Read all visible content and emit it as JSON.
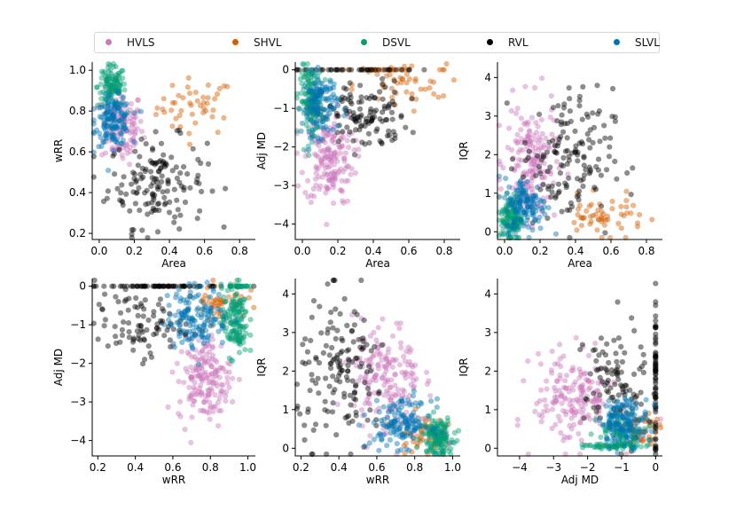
{
  "legend": {
    "items": [
      {
        "label": "HVLS",
        "color": "#CC78BC"
      },
      {
        "label": "SHVL",
        "color": "#D55E00"
      },
      {
        "label": "DSVL",
        "color": "#029E73"
      },
      {
        "label": "RVL",
        "color": "#000000"
      },
      {
        "label": "SLVL",
        "color": "#0173B2"
      }
    ]
  },
  "chart_data": [
    {
      "type": "scatter",
      "xlabel": "Area",
      "ylabel": "wRR",
      "xlim": [
        -0.04,
        0.89
      ],
      "ylim": [
        0.17,
        1.04
      ],
      "xticks": [
        0.0,
        0.2,
        0.4,
        0.6,
        0.8
      ],
      "yticks": [
        0.2,
        0.4,
        0.6,
        0.8,
        1.0
      ],
      "xtick_labels": [
        "0.0",
        "0.2",
        "0.4",
        "0.6",
        "0.8"
      ],
      "ytick_labels": [
        "0.2",
        "0.4",
        "0.6",
        "0.8",
        "1.0"
      ],
      "series": [
        {
          "name": "HVLS",
          "clusters": [
            {
              "cx": 0.13,
              "cy": 0.72,
              "sx": 0.06,
              "sy": 0.09,
              "n": 110
            }
          ]
        },
        {
          "name": "SHVL",
          "clusters": [
            {
              "cx": 0.55,
              "cy": 0.82,
              "sx": 0.11,
              "sy": 0.07,
              "n": 45
            }
          ]
        },
        {
          "name": "DSVL",
          "clusters": [
            {
              "cx": 0.07,
              "cy": 0.92,
              "sx": 0.04,
              "sy": 0.05,
              "n": 110
            }
          ]
        },
        {
          "name": "RVL",
          "clusters": [
            {
              "cx": 0.33,
              "cy": 0.45,
              "sx": 0.14,
              "sy": 0.11,
              "n": 150
            }
          ]
        },
        {
          "name": "SLVL",
          "clusters": [
            {
              "cx": 0.08,
              "cy": 0.75,
              "sx": 0.05,
              "sy": 0.06,
              "n": 140
            }
          ]
        }
      ]
    },
    {
      "type": "scatter",
      "xlabel": "Area",
      "ylabel": "Adj MD",
      "xlim": [
        -0.04,
        0.89
      ],
      "ylim": [
        -4.4,
        0.2
      ],
      "xticks": [
        0.0,
        0.2,
        0.4,
        0.6,
        0.8
      ],
      "yticks": [
        -4,
        -3,
        -2,
        -1,
        0
      ],
      "xtick_labels": [
        "0.0",
        "0.2",
        "0.4",
        "0.6",
        "0.8"
      ],
      "ytick_labels": [
        "−4",
        "−3",
        "−2",
        "−1",
        "0"
      ],
      "series": [
        {
          "name": "HVLS",
          "clusters": [
            {
              "cx": 0.15,
              "cy": -2.3,
              "sx": 0.07,
              "sy": 0.6,
              "n": 170
            }
          ]
        },
        {
          "name": "SHVL",
          "clusters": [
            {
              "cx": 0.55,
              "cy": -0.4,
              "sx": 0.13,
              "sy": 0.3,
              "n": 45
            },
            {
              "cx": 0.45,
              "cy": 0.0,
              "sx": 0.2,
              "sy": 0.0,
              "n": 25
            }
          ]
        },
        {
          "name": "DSVL",
          "clusters": [
            {
              "cx": 0.05,
              "cy": -0.8,
              "sx": 0.03,
              "sy": 0.45,
              "n": 140
            }
          ]
        },
        {
          "name": "RVL",
          "clusters": [
            {
              "cx": 0.35,
              "cy": -1.2,
              "sx": 0.12,
              "sy": 0.45,
              "n": 120
            },
            {
              "cx": 0.3,
              "cy": 0.0,
              "sx": 0.18,
              "sy": 0.0,
              "n": 40
            }
          ]
        },
        {
          "name": "SLVL",
          "clusters": [
            {
              "cx": 0.1,
              "cy": -0.9,
              "sx": 0.05,
              "sy": 0.4,
              "n": 120
            }
          ]
        }
      ]
    },
    {
      "type": "scatter",
      "xlabel": "Area",
      "ylabel": "IQR",
      "xlim": [
        -0.04,
        0.89
      ],
      "ylim": [
        -0.2,
        4.4
      ],
      "xticks": [
        0.0,
        0.2,
        0.4,
        0.6,
        0.8
      ],
      "yticks": [
        0,
        1,
        2,
        3,
        4
      ],
      "xtick_labels": [
        "0.0",
        "0.2",
        "0.4",
        "0.6",
        "0.8"
      ],
      "ytick_labels": [
        "0",
        "1",
        "2",
        "3",
        "4"
      ],
      "series": [
        {
          "name": "HVLS",
          "clusters": [
            {
              "cx": 0.15,
              "cy": 1.8,
              "sx": 0.07,
              "sy": 0.75,
              "n": 170
            }
          ]
        },
        {
          "name": "SHVL",
          "clusters": [
            {
              "cx": 0.55,
              "cy": 0.4,
              "sx": 0.12,
              "sy": 0.25,
              "n": 55
            }
          ]
        },
        {
          "name": "DSVL",
          "clusters": [
            {
              "cx": 0.04,
              "cy": 0.35,
              "sx": 0.03,
              "sy": 0.3,
              "n": 130
            }
          ]
        },
        {
          "name": "RVL",
          "clusters": [
            {
              "cx": 0.35,
              "cy": 1.9,
              "sx": 0.13,
              "sy": 0.9,
              "n": 150
            }
          ]
        },
        {
          "name": "SLVL",
          "clusters": [
            {
              "cx": 0.12,
              "cy": 0.7,
              "sx": 0.06,
              "sy": 0.35,
              "n": 130
            }
          ]
        }
      ]
    },
    {
      "type": "scatter",
      "xlabel": "wRR",
      "ylabel": "Adj MD",
      "xlim": [
        0.17,
        1.04
      ],
      "ylim": [
        -4.4,
        0.2
      ],
      "xticks": [
        0.2,
        0.4,
        0.6,
        0.8,
        1.0
      ],
      "yticks": [
        -4,
        -3,
        -2,
        -1,
        0
      ],
      "xtick_labels": [
        "0.2",
        "0.4",
        "0.6",
        "0.8",
        "1.0"
      ],
      "ytick_labels": [
        "−4",
        "−3",
        "−2",
        "−1",
        "0"
      ],
      "series": [
        {
          "name": "HVLS",
          "clusters": [
            {
              "cx": 0.77,
              "cy": -2.4,
              "sx": 0.07,
              "sy": 0.55,
              "n": 170
            }
          ]
        },
        {
          "name": "SHVL",
          "clusters": [
            {
              "cx": 0.85,
              "cy": -0.35,
              "sx": 0.07,
              "sy": 0.25,
              "n": 45
            }
          ]
        },
        {
          "name": "DSVL",
          "clusters": [
            {
              "cx": 0.93,
              "cy": -0.9,
              "sx": 0.035,
              "sy": 0.45,
              "n": 140
            },
            {
              "cx": 0.95,
              "cy": 0.0,
              "sx": 0.03,
              "sy": 0.0,
              "n": 30
            }
          ]
        },
        {
          "name": "RVL",
          "clusters": [
            {
              "cx": 0.42,
              "cy": -1.0,
              "sx": 0.12,
              "sy": 0.4,
              "n": 90
            },
            {
              "cx": 0.5,
              "cy": 0.0,
              "sx": 0.18,
              "sy": 0.0,
              "n": 70
            }
          ]
        },
        {
          "name": "SLVL",
          "clusters": [
            {
              "cx": 0.73,
              "cy": -0.8,
              "sx": 0.08,
              "sy": 0.4,
              "n": 140
            }
          ]
        }
      ]
    },
    {
      "type": "scatter",
      "xlabel": "wRR",
      "ylabel": "IQR",
      "xlim": [
        0.17,
        1.04
      ],
      "ylim": [
        -0.2,
        4.4
      ],
      "xticks": [
        0.2,
        0.4,
        0.6,
        0.8,
        1.0
      ],
      "yticks": [
        0,
        1,
        2,
        3,
        4
      ],
      "xtick_labels": [
        "0.2",
        "0.4",
        "0.6",
        "0.8",
        "1.0"
      ],
      "ytick_labels": [
        "0",
        "1",
        "2",
        "3",
        "4"
      ],
      "series": [
        {
          "name": "HVLS",
          "clusters": [
            {
              "cx": 0.65,
              "cy": 1.8,
              "sx": 0.09,
              "sy": 0.75,
              "n": 170
            }
          ]
        },
        {
          "name": "SHVL",
          "clusters": [
            {
              "cx": 0.83,
              "cy": 0.4,
              "sx": 0.06,
              "sy": 0.25,
              "n": 45
            }
          ]
        },
        {
          "name": "DSVL",
          "clusters": [
            {
              "cx": 0.92,
              "cy": 0.3,
              "sx": 0.04,
              "sy": 0.25,
              "n": 140
            }
          ]
        },
        {
          "name": "RVL",
          "clusters": [
            {
              "cx": 0.42,
              "cy": 1.9,
              "sx": 0.12,
              "sy": 0.95,
              "n": 150
            }
          ]
        },
        {
          "name": "SLVL",
          "clusters": [
            {
              "cx": 0.73,
              "cy": 0.65,
              "sx": 0.08,
              "sy": 0.3,
              "n": 140
            }
          ]
        }
      ]
    },
    {
      "type": "scatter",
      "xlabel": "Adj MD",
      "ylabel": "IQR",
      "xlim": [
        -4.65,
        0.2
      ],
      "ylim": [
        -0.2,
        4.4
      ],
      "xticks": [
        -4,
        -3,
        -2,
        -1,
        0
      ],
      "yticks": [
        0,
        1,
        2,
        3,
        4
      ],
      "xtick_labels": [
        "−4",
        "−3",
        "−2",
        "−1",
        "0"
      ],
      "ytick_labels": [
        "0",
        "1",
        "2",
        "3",
        "4"
      ],
      "series": [
        {
          "name": "HVLS",
          "clusters": [
            {
              "cx": -2.4,
              "cy": 1.3,
              "sx": 0.6,
              "sy": 0.6,
              "n": 170
            }
          ]
        },
        {
          "name": "SHVL",
          "clusters": [
            {
              "cx": -0.4,
              "cy": 0.4,
              "sx": 0.25,
              "sy": 0.25,
              "n": 45
            }
          ]
        },
        {
          "name": "DSVL",
          "clusters": [
            {
              "cx": -1.2,
              "cy": 0.05,
              "sx": 0.45,
              "sy": 0.03,
              "n": 60
            },
            {
              "cx": -1.0,
              "cy": 0.5,
              "sx": 0.35,
              "sy": 0.2,
              "n": 80
            }
          ]
        },
        {
          "name": "RVL",
          "clusters": [
            {
              "cx": -1.2,
              "cy": 1.6,
              "sx": 0.45,
              "sy": 0.8,
              "n": 100
            },
            {
              "cx": 0.0,
              "cy": 1.8,
              "sx": 0.0,
              "sy": 1.0,
              "n": 70
            }
          ]
        },
        {
          "name": "SLVL",
          "clusters": [
            {
              "cx": -0.9,
              "cy": 0.7,
              "sx": 0.35,
              "sy": 0.3,
              "n": 140
            }
          ]
        }
      ]
    }
  ]
}
